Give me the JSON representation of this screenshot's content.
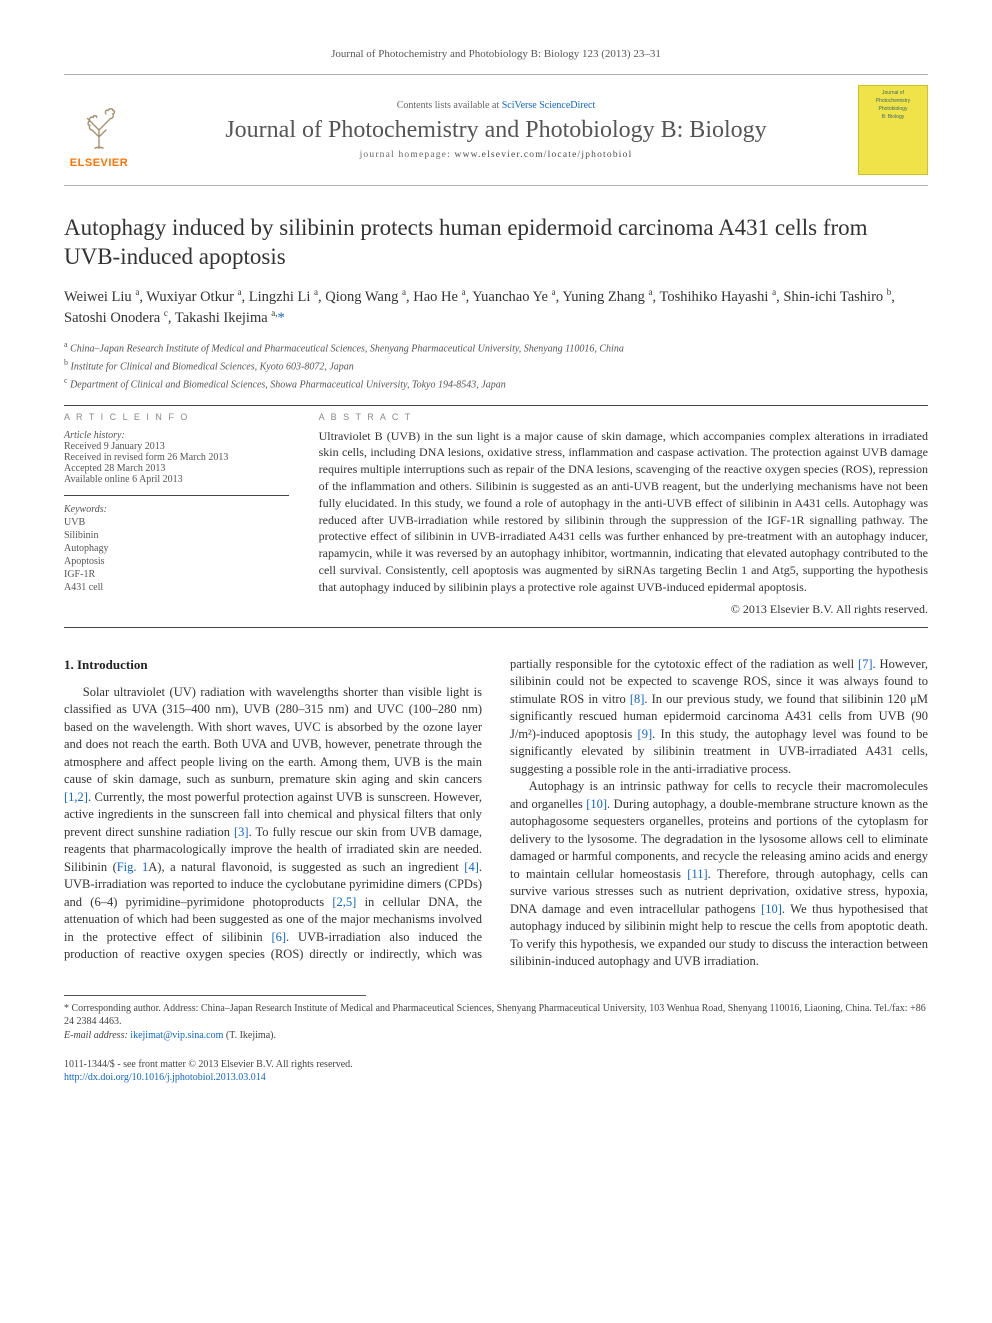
{
  "journal_ref": "Journal of Photochemistry and Photobiology B: Biology 123 (2013) 23–31",
  "masthead": {
    "publisher": "ELSEVIER",
    "avail_prefix": "Contents lists available at ",
    "avail_link": "SciVerse ScienceDirect",
    "journal_title": "Journal of Photochemistry and Photobiology B: Biology",
    "homepage_prefix": "journal homepage: ",
    "homepage_url": "www.elsevier.com/locate/jphotobiol",
    "cover_text_1": "Journal of",
    "cover_text_2": "Photochemistry",
    "cover_text_3": "Photobiology",
    "cover_text_4": "B: Biology"
  },
  "article": {
    "title": "Autophagy induced by silibinin protects human epidermoid carcinoma A431 cells from UVB-induced apoptosis",
    "authors_html": "Weiwei Liu <sup>a</sup>, Wuxiyar Otkur <sup>a</sup>, Lingzhi Li <sup>a</sup>, Qiong Wang <sup>a</sup>, Hao He <sup>a</sup>, Yuanchao Ye <sup>a</sup>, Yuning Zhang <sup>a</sup>, Toshihiko Hayashi <sup>a</sup>, Shin-ichi Tashiro <sup>b</sup>, Satoshi Onodera <sup>c</sup>, Takashi Ikejima <sup>a,</sup><span class='link'>*</span>",
    "aff_a": "China–Japan Research Institute of Medical and Pharmaceutical Sciences, Shenyang Pharmaceutical University, Shenyang 110016, China",
    "aff_b": "Institute for Clinical and Biomedical Sciences, Kyoto 603-8072, Japan",
    "aff_c": "Department of Clinical and Biomedical Sciences, Showa Pharmaceutical University, Tokyo 194-8543, Japan"
  },
  "info": {
    "header": "A R T I C L E   I N F O",
    "history_label": "Article history:",
    "received": "Received 9 January 2013",
    "revised": "Received in revised form 26 March 2013",
    "accepted": "Accepted 28 March 2013",
    "online": "Available online 6 April 2013",
    "kw_label": "Keywords:",
    "keywords": [
      "UVB",
      "Silibinin",
      "Autophagy",
      "Apoptosis",
      "IGF-1R",
      "A431 cell"
    ]
  },
  "abstract": {
    "header": "A B S T R A C T",
    "body": "Ultraviolet B (UVB) in the sun light is a major cause of skin damage, which accompanies complex alterations in irradiated skin cells, including DNA lesions, oxidative stress, inflammation and caspase activation. The protection against UVB damage requires multiple interruptions such as repair of the DNA lesions, scavenging of the reactive oxygen species (ROS), repression of the inflammation and others. Silibinin is suggested as an anti-UVB reagent, but the underlying mechanisms have not been fully elucidated. In this study, we found a role of autophagy in the anti-UVB effect of silibinin in A431 cells. Autophagy was reduced after UVB-irradiation while restored by silibinin through the suppression of the IGF-1R signalling pathway. The protective effect of silibinin in UVB-irradiated A431 cells was further enhanced by pre-treatment with an autophagy inducer, rapamycin, while it was reversed by an autophagy inhibitor, wortmannin, indicating that elevated autophagy contributed to the cell survival. Consistently, cell apoptosis was augmented by siRNAs targeting Beclin 1 and Atg5, supporting the hypothesis that autophagy induced by silibinin plays a protective role against UVB-induced epidermal apoptosis.",
    "copyright": "© 2013 Elsevier B.V. All rights reserved."
  },
  "section1": {
    "heading": "1. Introduction",
    "p1a": "Solar ultraviolet (UV) radiation with wavelengths shorter than visible light is classified as UVA (315–400 nm), UVB (280–315 nm) and UVC (100–280 nm) based on the wavelength. With short waves, UVC is absorbed by the ozone layer and does not reach the earth. Both UVA and UVB, however, penetrate through the atmosphere and affect people living on the earth. Among them, UVB is the main cause of skin damage, such as sunburn, premature skin aging and skin cancers ",
    "ref12": "[1,2]",
    "p1b": ". Currently, the most powerful protection against UVB is sunscreen. However, active ingredients in the sunscreen fall into chemical and physical filters that only prevent direct sunshine radiation ",
    "ref3": "[3]",
    "p1c": ". To fully rescue our skin from UVB damage, reagents that pharmacologically improve the health of irradiated skin are needed. Silibinin (",
    "fig1a": "Fig. 1",
    "p1d": "A), a natural flavonoid, is suggested as such an ingredient ",
    "ref4": "[4]",
    "p1e": ". UVB-irradiation was reported to induce the cyclobutane pyrimidine dimers (CPDs) and (6–4) pyrimidine–pyrimidone photoproducts ",
    "ref25": "[2,5]",
    "p1f": " in cellular DNA, the attenuation of which had been suggested as one of the major mechanisms involved in the protective effect of silibinin ",
    "ref6": "[6]",
    "p1g": ". UVB-irradiation also induced the production of reactive oxygen species (ROS) directly or indirectly, which was partially responsible for the cytotoxic effect of the radiation as well ",
    "ref7": "[7]",
    "p1h": ". However, silibinin could not be expected to scavenge ROS, since it was always found to stimulate ROS in vitro ",
    "ref8": "[8]",
    "p1i": ". In our previous study, we found that silibinin 120 μM significantly rescued human epidermoid carcinoma A431 cells from UVB (90 J/m²)-induced apoptosis ",
    "ref9": "[9]",
    "p1j": ". In this study, the autophagy level was found to be significantly elevated by silibinin treatment in UVB-irradiated A431 cells, suggesting a possible role in the anti-irradiative process.",
    "p2a": "Autophagy is an intrinsic pathway for cells to recycle their macromolecules and organelles ",
    "ref10a": "[10]",
    "p2b": ". During autophagy, a double-membrane structure known as the autophagosome sequesters organelles, proteins and portions of the cytoplasm for delivery to the lysosome. The degradation in the lysosome allows cell to eliminate damaged or harmful components, and recycle the releasing amino acids and energy to maintain cellular homeostasis ",
    "ref11": "[11]",
    "p2c": ". Therefore, through autophagy, cells can survive various stresses such as nutrient deprivation, oxidative stress, hypoxia, DNA damage and even intracellular pathogens ",
    "ref10b": "[10]",
    "p2d": ". We thus hypothesised that autophagy induced by silibinin might help to rescue the cells from apoptotic death. To verify this hypothesis, we expanded our study to discuss the interaction between silibinin-induced autophagy and UVB irradiation."
  },
  "footnote": {
    "corr_label": "* Corresponding author. Address: China–Japan Research Institute of Medical and Pharmaceutical Sciences, Shenyang Pharmaceutical University, 103 Wenhua Road, Shenyang 110016, Liaoning, China. Tel./fax: +86 24 2384 4463.",
    "email_label": "E-mail address: ",
    "email": "ikejimat@vip.sina.com",
    "email_person": " (T. Ikejima)."
  },
  "footer": {
    "line1": "1011-1344/$ - see front matter © 2013 Elsevier B.V. All rights reserved.",
    "doi": "http://dx.doi.org/10.1016/j.jphotobiol.2013.03.014"
  }
}
